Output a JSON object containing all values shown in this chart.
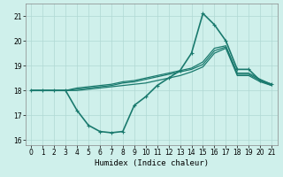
{
  "xlabel": "Humidex (Indice chaleur)",
  "x_values": [
    0,
    1,
    2,
    3,
    4,
    5,
    6,
    7,
    8,
    9,
    10,
    11,
    12,
    13,
    14,
    15,
    16,
    17,
    18,
    19,
    20,
    21
  ],
  "lines": [
    {
      "y": [
        18.0,
        18.0,
        18.0,
        18.0,
        17.2,
        16.6,
        16.35,
        16.3,
        16.35,
        17.4,
        17.75,
        18.2,
        18.5,
        18.8,
        19.5,
        21.1,
        20.65,
        20.0,
        18.85,
        18.85,
        18.4,
        18.25
      ],
      "color": "#1a7a6e",
      "linewidth": 1.2,
      "marker": "+"
    },
    {
      "y": [
        18.0,
        18.0,
        18.0,
        18.0,
        18.0,
        18.05,
        18.1,
        18.15,
        18.2,
        18.25,
        18.3,
        18.4,
        18.5,
        18.6,
        18.75,
        18.95,
        19.5,
        19.7,
        18.6,
        18.6,
        18.35,
        18.2
      ],
      "color": "#1a7a6e",
      "linewidth": 0.9,
      "marker": null
    },
    {
      "y": [
        18.0,
        18.0,
        18.0,
        18.0,
        18.05,
        18.1,
        18.15,
        18.2,
        18.3,
        18.35,
        18.45,
        18.55,
        18.65,
        18.75,
        18.85,
        19.05,
        19.6,
        19.75,
        18.65,
        18.65,
        18.4,
        18.2
      ],
      "color": "#1a7a6e",
      "linewidth": 0.9,
      "marker": null
    },
    {
      "y": [
        18.0,
        18.0,
        18.0,
        18.0,
        18.1,
        18.15,
        18.2,
        18.25,
        18.35,
        18.4,
        18.5,
        18.6,
        18.7,
        18.8,
        18.9,
        19.15,
        19.7,
        19.8,
        18.7,
        18.7,
        18.45,
        18.25
      ],
      "color": "#1a7a6e",
      "linewidth": 0.9,
      "marker": null
    }
  ],
  "xlim": [
    -0.5,
    21.5
  ],
  "ylim": [
    15.8,
    21.5
  ],
  "yticks": [
    16,
    17,
    18,
    19,
    20,
    21
  ],
  "xticks": [
    0,
    1,
    2,
    3,
    4,
    5,
    6,
    7,
    8,
    9,
    10,
    11,
    12,
    13,
    14,
    15,
    16,
    17,
    18,
    19,
    20,
    21
  ],
  "bg_color": "#cff0eb",
  "grid_color": "#b0d8d3",
  "marker_size": 3,
  "marker_linewidth": 0.8
}
